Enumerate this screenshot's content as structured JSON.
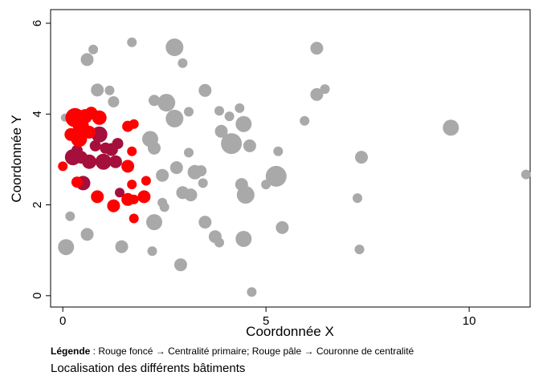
{
  "chart_data": {
    "type": "scatter",
    "xlabel": "Coordonnée X",
    "ylabel": "Coordonnée Y",
    "xlim": [
      -0.3,
      11.5
    ],
    "ylim": [
      -0.25,
      6.3
    ],
    "xticks": [
      0,
      5,
      10
    ],
    "yticks": [
      0,
      2,
      4,
      6
    ],
    "grid": false,
    "legend": "none",
    "colors": {
      "grey": "#a9a9a9",
      "dark_red": "#a50f3c",
      "bright_red": "#ff0000"
    },
    "series": [
      {
        "color": "#a9a9a9",
        "points": [
          {
            "x": 0.05,
            "y": 3.92,
            "s": 5
          },
          {
            "x": 0.18,
            "y": 1.75,
            "s": 6
          },
          {
            "x": 0.08,
            "y": 1.07,
            "s": 10
          },
          {
            "x": 0.6,
            "y": 5.2,
            "s": 8
          },
          {
            "x": 0.75,
            "y": 5.42,
            "s": 6
          },
          {
            "x": 0.85,
            "y": 4.53,
            "s": 8
          },
          {
            "x": 1.15,
            "y": 4.52,
            "s": 6
          },
          {
            "x": 1.25,
            "y": 4.27,
            "s": 7
          },
          {
            "x": 0.6,
            "y": 1.35,
            "s": 8
          },
          {
            "x": 1.45,
            "y": 1.08,
            "s": 8
          },
          {
            "x": 1.7,
            "y": 5.58,
            "s": 6
          },
          {
            "x": 2.75,
            "y": 5.47,
            "s": 11
          },
          {
            "x": 2.95,
            "y": 5.12,
            "s": 6
          },
          {
            "x": 2.25,
            "y": 4.3,
            "s": 7
          },
          {
            "x": 2.55,
            "y": 4.25,
            "s": 11
          },
          {
            "x": 2.75,
            "y": 3.9,
            "s": 11
          },
          {
            "x": 3.1,
            "y": 4.05,
            "s": 6
          },
          {
            "x": 3.5,
            "y": 4.52,
            "s": 8
          },
          {
            "x": 2.15,
            "y": 3.45,
            "s": 10
          },
          {
            "x": 2.25,
            "y": 3.25,
            "s": 8
          },
          {
            "x": 3.1,
            "y": 3.15,
            "s": 6
          },
          {
            "x": 2.45,
            "y": 2.65,
            "s": 8
          },
          {
            "x": 2.8,
            "y": 2.82,
            "s": 8
          },
          {
            "x": 3.25,
            "y": 2.72,
            "s": 9
          },
          {
            "x": 3.4,
            "y": 2.75,
            "s": 7
          },
          {
            "x": 3.45,
            "y": 2.48,
            "s": 6
          },
          {
            "x": 2.95,
            "y": 2.27,
            "s": 8
          },
          {
            "x": 3.15,
            "y": 2.22,
            "s": 8
          },
          {
            "x": 2.45,
            "y": 2.05,
            "s": 6
          },
          {
            "x": 2.5,
            "y": 1.95,
            "s": 6
          },
          {
            "x": 2.25,
            "y": 1.62,
            "s": 10
          },
          {
            "x": 3.5,
            "y": 1.62,
            "s": 8
          },
          {
            "x": 3.75,
            "y": 1.3,
            "s": 8
          },
          {
            "x": 3.85,
            "y": 1.17,
            "s": 6
          },
          {
            "x": 2.2,
            "y": 0.98,
            "s": 6
          },
          {
            "x": 2.9,
            "y": 0.68,
            "s": 8
          },
          {
            "x": 3.85,
            "y": 4.07,
            "s": 6
          },
          {
            "x": 4.1,
            "y": 3.95,
            "s": 6
          },
          {
            "x": 4.35,
            "y": 4.13,
            "s": 6
          },
          {
            "x": 3.9,
            "y": 3.62,
            "s": 8
          },
          {
            "x": 4.15,
            "y": 3.35,
            "s": 13
          },
          {
            "x": 4.45,
            "y": 3.78,
            "s": 10
          },
          {
            "x": 4.6,
            "y": 3.3,
            "s": 8
          },
          {
            "x": 4.4,
            "y": 2.45,
            "s": 8
          },
          {
            "x": 4.5,
            "y": 2.22,
            "s": 11
          },
          {
            "x": 4.45,
            "y": 1.25,
            "s": 10
          },
          {
            "x": 4.65,
            "y": 0.08,
            "s": 6
          },
          {
            "x": 5.0,
            "y": 2.45,
            "s": 6
          },
          {
            "x": 5.25,
            "y": 2.63,
            "s": 13
          },
          {
            "x": 5.3,
            "y": 3.18,
            "s": 6
          },
          {
            "x": 5.4,
            "y": 1.5,
            "s": 8
          },
          {
            "x": 5.95,
            "y": 3.85,
            "s": 6
          },
          {
            "x": 6.25,
            "y": 5.45,
            "s": 8
          },
          {
            "x": 6.25,
            "y": 4.43,
            "s": 8
          },
          {
            "x": 6.45,
            "y": 4.55,
            "s": 6
          },
          {
            "x": 7.35,
            "y": 3.05,
            "s": 8
          },
          {
            "x": 7.25,
            "y": 2.15,
            "s": 6
          },
          {
            "x": 7.3,
            "y": 1.02,
            "s": 6
          },
          {
            "x": 9.55,
            "y": 3.7,
            "s": 10
          },
          {
            "x": 11.4,
            "y": 2.67,
            "s": 6
          }
        ]
      },
      {
        "color": "#a50f3c",
        "points": [
          {
            "x": 0.25,
            "y": 3.05,
            "s": 10
          },
          {
            "x": 0.35,
            "y": 3.2,
            "s": 7
          },
          {
            "x": 0.45,
            "y": 3.05,
            "s": 8
          },
          {
            "x": 0.65,
            "y": 2.95,
            "s": 9
          },
          {
            "x": 0.8,
            "y": 3.3,
            "s": 7
          },
          {
            "x": 0.9,
            "y": 3.55,
            "s": 10
          },
          {
            "x": 1.0,
            "y": 2.95,
            "s": 10
          },
          {
            "x": 1.05,
            "y": 3.25,
            "s": 7
          },
          {
            "x": 1.2,
            "y": 3.22,
            "s": 8
          },
          {
            "x": 1.3,
            "y": 2.95,
            "s": 8
          },
          {
            "x": 1.35,
            "y": 3.35,
            "s": 7
          },
          {
            "x": 0.5,
            "y": 2.48,
            "s": 9
          },
          {
            "x": 1.4,
            "y": 2.27,
            "s": 6
          }
        ]
      },
      {
        "color": "#ff0000",
        "points": [
          {
            "x": 0.3,
            "y": 3.92,
            "s": 12
          },
          {
            "x": 0.55,
            "y": 3.95,
            "s": 9
          },
          {
            "x": 0.45,
            "y": 3.72,
            "s": 10
          },
          {
            "x": 0.7,
            "y": 4.02,
            "s": 8
          },
          {
            "x": 0.9,
            "y": 3.92,
            "s": 9
          },
          {
            "x": 0.2,
            "y": 3.55,
            "s": 8
          },
          {
            "x": 0.4,
            "y": 3.45,
            "s": 10
          },
          {
            "x": 0.65,
            "y": 3.6,
            "s": 8
          },
          {
            "x": 0.0,
            "y": 2.85,
            "s": 6
          },
          {
            "x": 0.35,
            "y": 2.5,
            "s": 7
          },
          {
            "x": 0.85,
            "y": 2.18,
            "s": 8
          },
          {
            "x": 1.25,
            "y": 1.98,
            "s": 8
          },
          {
            "x": 1.6,
            "y": 2.12,
            "s": 8
          },
          {
            "x": 1.7,
            "y": 2.45,
            "s": 6
          },
          {
            "x": 1.75,
            "y": 2.12,
            "s": 6
          },
          {
            "x": 1.6,
            "y": 2.85,
            "s": 8
          },
          {
            "x": 1.7,
            "y": 3.18,
            "s": 6
          },
          {
            "x": 1.6,
            "y": 3.73,
            "s": 7
          },
          {
            "x": 1.75,
            "y": 3.78,
            "s": 6
          },
          {
            "x": 2.0,
            "y": 2.18,
            "s": 8
          },
          {
            "x": 2.05,
            "y": 2.53,
            "s": 6
          },
          {
            "x": 1.75,
            "y": 1.7,
            "s": 6
          }
        ]
      }
    ]
  },
  "notes": {
    "legend_label": "Légende",
    "legend_text": " : Rouge foncé → Centralité primaire; Rouge pâle → Couronne de centralité"
  },
  "caption": "Localisation des différents bâtiments"
}
